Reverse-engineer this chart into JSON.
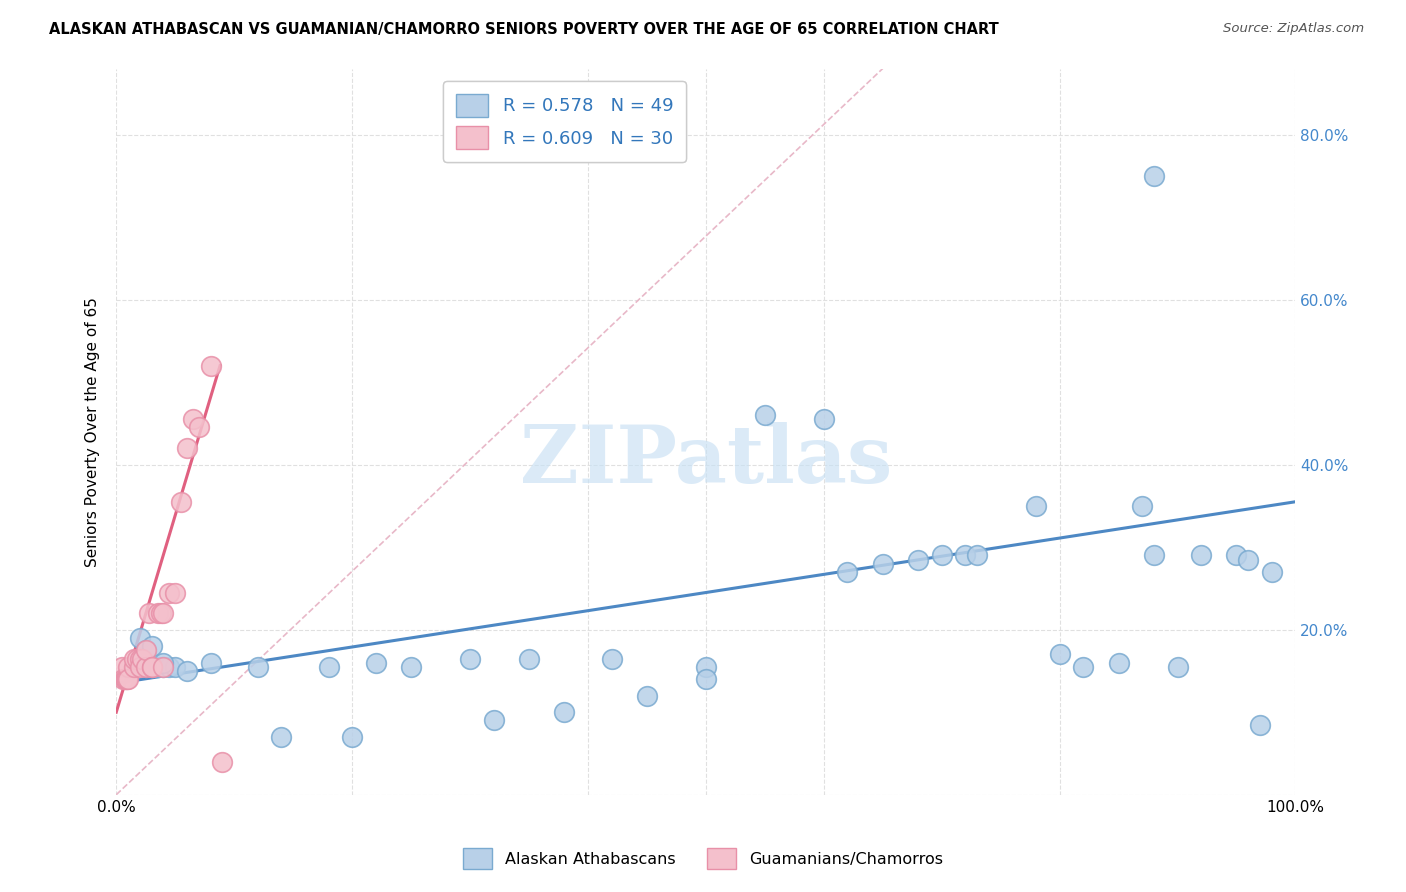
{
  "title": "ALASKAN ATHABASCAN VS GUAMANIAN/CHAMORRO SENIORS POVERTY OVER THE AGE OF 65 CORRELATION CHART",
  "source": "Source: ZipAtlas.com",
  "ylabel": "Seniors Poverty Over the Age of 65",
  "xlim": [
    0,
    1.0
  ],
  "ylim": [
    0,
    0.88
  ],
  "blue_R": 0.578,
  "blue_N": 49,
  "pink_R": 0.609,
  "pink_N": 30,
  "blue_color": "#b8d0e8",
  "pink_color": "#f4c0cc",
  "blue_edge": "#7aaad0",
  "pink_edge": "#e890a8",
  "blue_line_color": "#4d88c4",
  "pink_line_color": "#e06080",
  "ref_line_color": "#e8b8c8",
  "legend_blue_label": "Alaskan Athabascans",
  "legend_pink_label": "Guamanians/Chamorros",
  "watermark_text": "ZIPatlas",
  "blue_x": [
    0.015,
    0.02,
    0.025,
    0.03,
    0.035,
    0.04,
    0.045,
    0.05,
    0.02,
    0.025,
    0.03,
    0.04,
    0.06,
    0.08,
    0.12,
    0.18,
    0.22,
    0.3,
    0.35,
    0.42,
    0.5,
    0.55,
    0.6,
    0.62,
    0.65,
    0.68,
    0.7,
    0.72,
    0.73,
    0.78,
    0.8,
    0.82,
    0.85,
    0.87,
    0.88,
    0.9,
    0.92,
    0.95,
    0.96,
    0.97,
    0.98,
    0.14,
    0.2,
    0.25,
    0.32,
    0.38,
    0.45,
    0.5,
    0.88
  ],
  "blue_y": [
    0.155,
    0.16,
    0.155,
    0.155,
    0.155,
    0.155,
    0.155,
    0.155,
    0.19,
    0.175,
    0.18,
    0.16,
    0.15,
    0.16,
    0.155,
    0.155,
    0.16,
    0.165,
    0.165,
    0.165,
    0.155,
    0.46,
    0.455,
    0.27,
    0.28,
    0.285,
    0.29,
    0.29,
    0.29,
    0.35,
    0.17,
    0.155,
    0.16,
    0.35,
    0.29,
    0.155,
    0.29,
    0.29,
    0.285,
    0.085,
    0.27,
    0.07,
    0.07,
    0.155,
    0.09,
    0.1,
    0.12,
    0.14,
    0.75
  ],
  "pink_x": [
    0.005,
    0.006,
    0.007,
    0.008,
    0.009,
    0.01,
    0.01,
    0.015,
    0.015,
    0.018,
    0.02,
    0.02,
    0.022,
    0.025,
    0.025,
    0.028,
    0.03,
    0.03,
    0.035,
    0.038,
    0.04,
    0.04,
    0.045,
    0.05,
    0.055,
    0.06,
    0.065,
    0.07,
    0.08,
    0.09
  ],
  "pink_y": [
    0.155,
    0.14,
    0.14,
    0.14,
    0.14,
    0.155,
    0.14,
    0.155,
    0.165,
    0.165,
    0.165,
    0.155,
    0.165,
    0.155,
    0.175,
    0.22,
    0.155,
    0.155,
    0.22,
    0.22,
    0.155,
    0.22,
    0.245,
    0.245,
    0.355,
    0.42,
    0.455,
    0.445,
    0.52,
    0.04
  ]
}
